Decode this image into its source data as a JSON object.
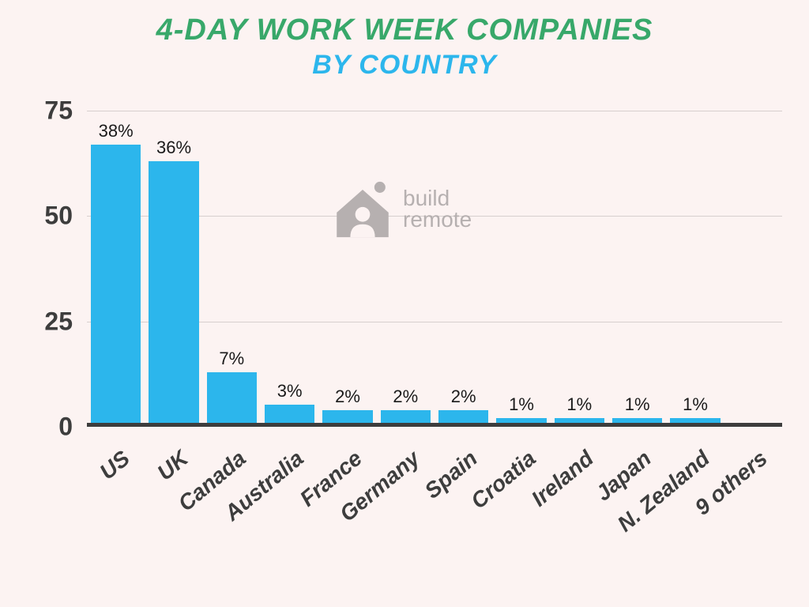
{
  "title": {
    "line1": "4-DAY WORK WEEK COMPANIES",
    "line2": "BY COUNTRY",
    "line1_color": "#38a86a",
    "line2_color": "#2cb6ec",
    "line1_fontsize": 38,
    "line2_fontsize": 34
  },
  "chart": {
    "type": "bar",
    "background_color": "#fcf3f2",
    "bar_color": "#2cb6ec",
    "axis_text_color": "#3d3d3d",
    "baseline_color": "#3d3d3d",
    "grid_color": "#d6cfce",
    "ylim": [
      0,
      75
    ],
    "ytick_step": 25,
    "yticks": [
      0,
      25,
      50,
      75
    ],
    "label_fontsize": 22,
    "ytick_fontsize": 32,
    "xtick_fontsize": 28,
    "xtick_rotation_deg": -40,
    "bar_gap_ratio": 0.15,
    "categories": [
      "US",
      "UK",
      "Canada",
      "Australia",
      "France",
      "Germany",
      "Spain",
      "Croatia",
      "Ireland",
      "Japan",
      "N. Zealand",
      "9 others"
    ],
    "values": [
      67,
      63,
      13,
      5.3,
      4,
      4,
      4,
      2,
      2,
      2,
      2,
      1
    ],
    "value_labels": [
      "38%",
      "36%",
      "7%",
      "3%",
      "2%",
      "2%",
      "2%",
      "1%",
      "1%",
      "1%",
      "1%",
      ""
    ]
  },
  "watermark": {
    "text_line1": "build",
    "text_line2": "remote",
    "color": "#b6b0b0",
    "fontsize": 28
  }
}
